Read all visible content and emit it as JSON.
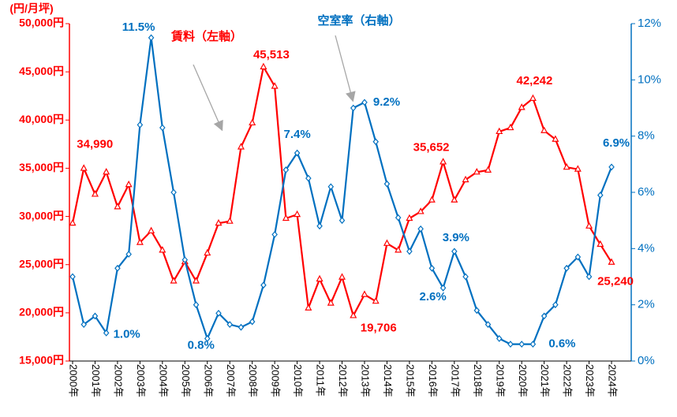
{
  "chart_data": {
    "type": "line",
    "y_axis_label": "(円/月坪)",
    "x": [
      2000,
      2000.5,
      2001,
      2001.5,
      2002,
      2002.5,
      2003,
      2003.5,
      2004,
      2004.5,
      2005,
      2005.5,
      2006,
      2006.5,
      2007,
      2007.5,
      2008,
      2008.5,
      2009,
      2009.5,
      2010,
      2010.5,
      2011,
      2011.5,
      2012,
      2012.5,
      2013,
      2013.5,
      2014,
      2014.5,
      2015,
      2015.5,
      2016,
      2016.5,
      2017,
      2017.5,
      2018,
      2018.5,
      2019,
      2019.5,
      2020,
      2020.5,
      2021,
      2021.5,
      2022,
      2022.5,
      2023,
      2023.5,
      2024
    ],
    "series": [
      {
        "name": "賃料（左軸）",
        "color": "#ff0000",
        "axis": "y",
        "values": [
          29300,
          34990,
          32300,
          34600,
          31000,
          33300,
          27300,
          28500,
          26500,
          23300,
          25300,
          23300,
          26200,
          29300,
          29500,
          37200,
          39700,
          45513,
          43500,
          29800,
          30200,
          20500,
          23500,
          21000,
          23700,
          19706,
          21900,
          21200,
          27200,
          26500,
          29800,
          30500,
          31700,
          35652,
          31700,
          33800,
          34600,
          34800,
          38800,
          39200,
          41300,
          42242,
          38900,
          38000,
          35100,
          34900,
          29000,
          27100,
          25240
        ],
        "value_labels": [
          null,
          "34,990",
          null,
          null,
          null,
          null,
          null,
          null,
          null,
          null,
          null,
          null,
          null,
          null,
          null,
          null,
          null,
          "45,513",
          null,
          null,
          null,
          null,
          null,
          null,
          null,
          "19,706",
          null,
          null,
          null,
          null,
          null,
          null,
          null,
          "35,652",
          null,
          null,
          null,
          null,
          null,
          null,
          null,
          "42,242",
          null,
          null,
          null,
          null,
          null,
          null,
          "25,240"
        ]
      },
      {
        "name": "空室率（右軸）",
        "color": "#0070c0",
        "axis": "y2",
        "values": [
          3.0,
          1.3,
          1.6,
          1.0,
          3.3,
          3.8,
          8.4,
          11.5,
          8.3,
          6.0,
          3.6,
          2.0,
          0.8,
          1.7,
          1.3,
          1.2,
          1.4,
          2.7,
          4.5,
          6.8,
          7.4,
          6.5,
          4.8,
          6.2,
          5.0,
          9.0,
          9.2,
          7.8,
          6.3,
          5.1,
          3.9,
          4.7,
          3.3,
          2.6,
          3.9,
          3.0,
          1.8,
          1.3,
          0.8,
          0.6,
          0.6,
          0.6,
          1.6,
          2.0,
          3.3,
          3.7,
          3.0,
          5.9,
          6.9
        ],
        "value_labels": [
          null,
          null,
          null,
          "1.0%",
          null,
          null,
          null,
          "11.5%",
          null,
          null,
          null,
          null,
          "0.8%",
          null,
          null,
          null,
          null,
          null,
          null,
          null,
          "7.4%",
          null,
          null,
          null,
          null,
          null,
          "9.2%",
          null,
          null,
          null,
          null,
          null,
          null,
          "2.6%",
          "3.9%",
          null,
          null,
          null,
          null,
          null,
          null,
          "0.6%",
          null,
          null,
          null,
          null,
          null,
          null,
          "6.9%"
        ]
      }
    ],
    "xlim": [
      2000,
      2024.5
    ],
    "xticks": [
      {
        "value": 2000,
        "label": "2000年"
      },
      {
        "value": 2001,
        "label": "2001年"
      },
      {
        "value": 2002,
        "label": "2002年"
      },
      {
        "value": 2003,
        "label": "2003年"
      },
      {
        "value": 2004,
        "label": "2004年"
      },
      {
        "value": 2005,
        "label": "2005年"
      },
      {
        "value": 2006,
        "label": "2006年"
      },
      {
        "value": 2007,
        "label": "2007年"
      },
      {
        "value": 2008,
        "label": "2008年"
      },
      {
        "value": 2009,
        "label": "2009年"
      },
      {
        "value": 2010,
        "label": "2010年"
      },
      {
        "value": 2011,
        "label": "2011年"
      },
      {
        "value": 2012,
        "label": "2012年"
      },
      {
        "value": 2013,
        "label": "2013年"
      },
      {
        "value": 2014,
        "label": "2014年"
      },
      {
        "value": 2015,
        "label": "2015年"
      },
      {
        "value": 2016,
        "label": "2016年"
      },
      {
        "value": 2017,
        "label": "2017年"
      },
      {
        "value": 2018,
        "label": "2018年"
      },
      {
        "value": 2019,
        "label": "2019年"
      },
      {
        "value": 2020,
        "label": "2020年"
      },
      {
        "value": 2021,
        "label": "2021年"
      },
      {
        "value": 2022,
        "label": "2022年"
      },
      {
        "value": 2023,
        "label": "2023年"
      },
      {
        "value": 2024,
        "label": "2024年"
      }
    ],
    "ylim": [
      15000,
      50000
    ],
    "yticks": [
      {
        "value": 15000,
        "label": "15,000円"
      },
      {
        "value": 20000,
        "label": "20,000円"
      },
      {
        "value": 25000,
        "label": "25,000円"
      },
      {
        "value": 30000,
        "label": "30,000円"
      },
      {
        "value": 35000,
        "label": "35,000円"
      },
      {
        "value": 40000,
        "label": "40,000円"
      },
      {
        "value": 45000,
        "label": "45,000円"
      },
      {
        "value": 50000,
        "label": "50,000円"
      }
    ],
    "y2lim": [
      0,
      12
    ],
    "y2ticks": [
      {
        "value": 0,
        "label": "0%"
      },
      {
        "value": 2,
        "label": "2%"
      },
      {
        "value": 4,
        "label": "4%"
      },
      {
        "value": 6,
        "label": "6%"
      },
      {
        "value": 8,
        "label": "8%"
      },
      {
        "value": 10,
        "label": "10%"
      },
      {
        "value": 12,
        "label": "12%"
      }
    ],
    "grid": false
  }
}
